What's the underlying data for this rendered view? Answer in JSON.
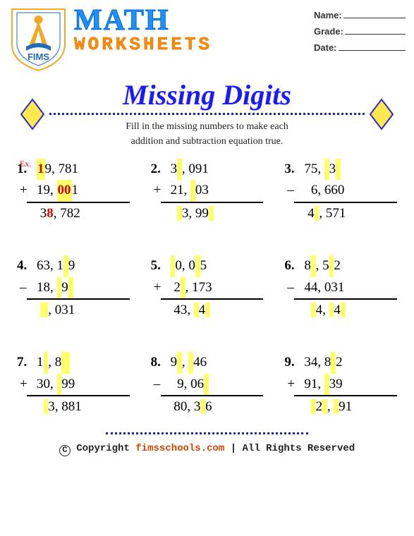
{
  "header": {
    "math": "MATH",
    "worksheets": "WORKSHEETS",
    "logo_text": "FIMS",
    "fields": {
      "name": "Name:",
      "grade": "Grade:",
      "date": "Date:"
    }
  },
  "subtitle": "Missing Digits",
  "instructions_l1": "Fill in the missing numbers to make each",
  "instructions_l2": "addition and subtraction equation true.",
  "ex_label": "Ex.",
  "colors": {
    "highlight": "#ffff66",
    "example_red": "#d00000",
    "title_blue": "#1e90ff",
    "subtitle_blue": "#1a1aff",
    "worksheets_orange": "#ff8c00",
    "diamond_fill": "#ffe84d",
    "diamond_stroke": "#2b2bcc",
    "brand": "#d04500"
  },
  "problems": [
    {
      "n": "1.",
      "line1": [
        {
          "t": "1",
          "hl": true,
          "red": true
        },
        {
          "t": "9, 781"
        }
      ],
      "op": "+",
      "line2": [
        {
          "t": "19, "
        },
        {
          "t": "00",
          "hl": true,
          "red": true
        },
        {
          "t": "1"
        }
      ],
      "res": [
        {
          "t": " 3"
        },
        {
          "t": "8",
          "red": true
        },
        {
          "t": ", 782"
        }
      ]
    },
    {
      "n": "2.",
      "line1": [
        {
          "t": "3"
        },
        {
          "t": " ",
          "hl": true
        },
        {
          "t": ", 091"
        }
      ],
      "op": "+",
      "line2": [
        {
          "t": "21, "
        },
        {
          "t": " ",
          "hl": true
        },
        {
          "t": "03"
        }
      ],
      "res": [
        {
          "t": "  "
        },
        {
          "t": " ",
          "hl": true
        },
        {
          "t": "3, 99"
        },
        {
          "t": " ",
          "hl": true
        }
      ]
    },
    {
      "n": "3.",
      "line1": [
        {
          "t": "75, "
        },
        {
          "t": " ",
          "hl": true
        },
        {
          "t": "3"
        },
        {
          "t": " ",
          "hl": true
        }
      ],
      "op": "–",
      "line2": [
        {
          "t": "  6, 660"
        }
      ],
      "res": [
        {
          "t": " 4"
        },
        {
          "t": " ",
          "hl": true
        },
        {
          "t": ", 571"
        }
      ]
    },
    {
      "n": "4.",
      "line1": [
        {
          "t": "63, 1"
        },
        {
          "t": " ",
          "hl": true
        },
        {
          "t": "9"
        }
      ],
      "op": "–",
      "line2": [
        {
          "t": "18, "
        },
        {
          "t": " ",
          "hl": true
        },
        {
          "t": "9"
        },
        {
          "t": " ",
          "hl": true
        }
      ],
      "res": [
        {
          "t": " "
        },
        {
          "t": "  ",
          "hl": true
        },
        {
          "t": ", 031"
        }
      ]
    },
    {
      "n": "5.",
      "line1": [
        {
          "t": " ",
          "hl": true
        },
        {
          "t": "0, 0"
        },
        {
          "t": " ",
          "hl": true
        },
        {
          "t": "5"
        }
      ],
      "op": "+",
      "line2": [
        {
          "t": " 2"
        },
        {
          "t": " ",
          "hl": true
        },
        {
          "t": ", 173"
        }
      ],
      "res": [
        {
          "t": " 43, "
        },
        {
          "t": " ",
          "hl": true
        },
        {
          "t": "4"
        },
        {
          "t": " ",
          "hl": true
        }
      ]
    },
    {
      "n": "6.",
      "line1": [
        {
          "t": "8"
        },
        {
          "t": " ",
          "hl": true
        },
        {
          "t": ", 5"
        },
        {
          "t": " ",
          "hl": true
        },
        {
          "t": "2"
        }
      ],
      "op": "–",
      "line2": [
        {
          "t": "44, 031"
        }
      ],
      "res": [
        {
          "t": "  "
        },
        {
          "t": " ",
          "hl": true
        },
        {
          "t": "4, "
        },
        {
          "t": " ",
          "hl": true
        },
        {
          "t": "4"
        },
        {
          "t": " ",
          "hl": true
        }
      ]
    },
    {
      "n": "7.",
      "line1": [
        {
          "t": "1"
        },
        {
          "t": " ",
          "hl": true
        },
        {
          "t": ", 8"
        },
        {
          "t": "  ",
          "hl": true
        }
      ],
      "op": "+",
      "line2": [
        {
          "t": "30, "
        },
        {
          "t": " ",
          "hl": true
        },
        {
          "t": "99"
        }
      ],
      "res": [
        {
          "t": "  "
        },
        {
          "t": " ",
          "hl": true
        },
        {
          "t": "3, 881"
        }
      ]
    },
    {
      "n": "8.",
      "line1": [
        {
          "t": "9"
        },
        {
          "t": " ",
          "hl": true
        },
        {
          "t": ", "
        },
        {
          "t": " ",
          "hl": true
        },
        {
          "t": "46"
        }
      ],
      "op": "–",
      "line2": [
        {
          "t": "  9, 06"
        },
        {
          "t": " ",
          "hl": true
        }
      ],
      "res": [
        {
          "t": " 80, 3"
        },
        {
          "t": " ",
          "hl": true
        },
        {
          "t": "6"
        }
      ]
    },
    {
      "n": "9.",
      "line1": [
        {
          "t": "34, 8"
        },
        {
          "t": " ",
          "hl": true
        },
        {
          "t": "2"
        }
      ],
      "op": "+",
      "line2": [
        {
          "t": "91, "
        },
        {
          "t": " ",
          "hl": true
        },
        {
          "t": "39"
        }
      ],
      "res": [
        {
          "t": "  "
        },
        {
          "t": " ",
          "hl": true
        },
        {
          "t": "2"
        },
        {
          "t": " ",
          "hl": true
        },
        {
          "t": ", "
        },
        {
          "t": " ",
          "hl": true
        },
        {
          "t": "91"
        }
      ]
    }
  ],
  "footer": {
    "copyright": "Copyright",
    "site": "fimsschools.com",
    "rights": " | All Rights Reserved"
  }
}
